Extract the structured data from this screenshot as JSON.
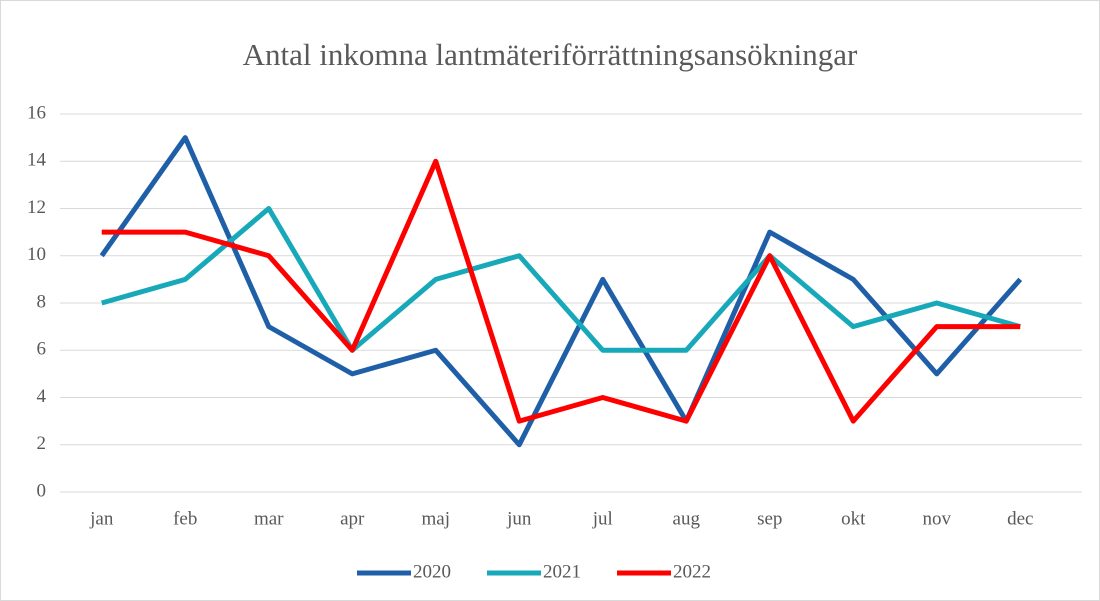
{
  "chart_data": {
    "type": "line",
    "title": "Antal inkomna lantmäteriförrättningsansökningar",
    "categories": [
      "jan",
      "feb",
      "mar",
      "apr",
      "maj",
      "jun",
      "jul",
      "aug",
      "sep",
      "okt",
      "nov",
      "dec"
    ],
    "series": [
      {
        "name": "2020",
        "color": "#1f5fa8",
        "values": [
          10,
          15,
          7,
          5,
          6,
          2,
          9,
          3,
          11,
          9,
          5,
          9
        ]
      },
      {
        "name": "2021",
        "color": "#17a9b9",
        "values": [
          8,
          9,
          12,
          6,
          9,
          10,
          6,
          6,
          10,
          7,
          8,
          7
        ]
      },
      {
        "name": "2022",
        "color": "#ff0000",
        "values": [
          11,
          11,
          10,
          6,
          14,
          3,
          4,
          3,
          10,
          3,
          7,
          7
        ]
      }
    ],
    "ylim": [
      0,
      16
    ],
    "yticks": [
      0,
      2,
      4,
      6,
      8,
      10,
      12,
      14,
      16
    ],
    "grid": true,
    "legend": "bottom"
  }
}
